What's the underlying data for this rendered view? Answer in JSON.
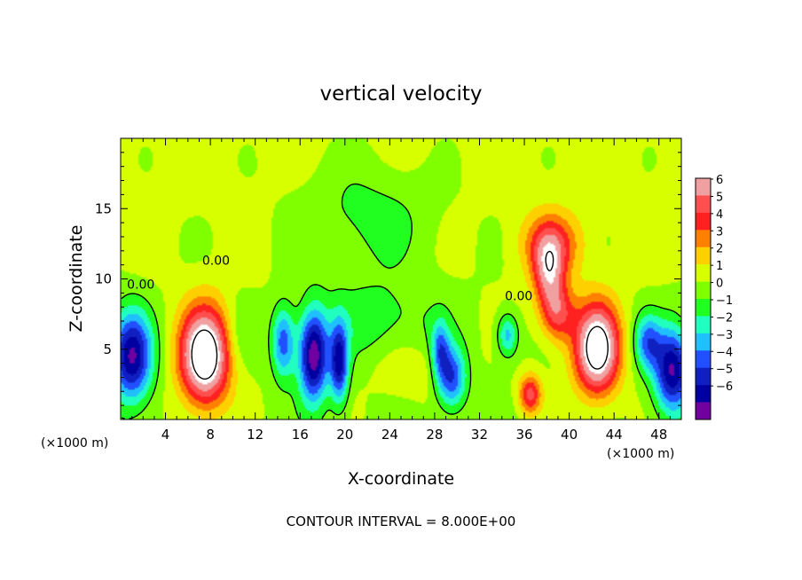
{
  "chart_data": {
    "type": "heatmap",
    "title": "vertical velocity",
    "xlabel": "X-coordinate",
    "ylabel": "Z-coordinate",
    "x_unit_left": "(×1000 m)",
    "x_unit_right": "(×1000 m)",
    "xlim": [
      0,
      50
    ],
    "ylim": [
      0,
      20
    ],
    "xticks": [
      4,
      8,
      12,
      16,
      20,
      24,
      28,
      32,
      36,
      40,
      44,
      48
    ],
    "yticks": [
      5,
      10,
      15
    ],
    "colorbar": {
      "levels": [
        6,
        5,
        4,
        3,
        2,
        1,
        0,
        -1,
        -2,
        -3,
        -4,
        -5,
        -6
      ],
      "tick_labels": [
        "6",
        "5",
        "4",
        "3",
        "2",
        "1",
        "0",
        "−1",
        "−2",
        "−3",
        "−4",
        "−5",
        "−6"
      ],
      "colors": [
        "#f0a0a0",
        "#ff5050",
        "#ff2020",
        "#ff8000",
        "#ffd000",
        "#d8ff00",
        "#80ff00",
        "#20ff20",
        "#20ffc0",
        "#20c0ff",
        "#2050ff",
        "#1020c0",
        "#0000a0",
        "#7000a0"
      ]
    },
    "contour_labels": [
      {
        "text": "0.00",
        "x": 8.5,
        "z": 11.0
      },
      {
        "text": "0.00",
        "x": 1.8,
        "z": 9.3
      },
      {
        "text": "0.00",
        "x": 35.5,
        "z": 8.5
      }
    ],
    "footnote": "CONTOUR INTERVAL = 8.000E+00",
    "updrafts": [
      {
        "x": 7.5,
        "z": 4.5,
        "sx": 2.2,
        "sz": 3.4,
        "amp": 9
      },
      {
        "x": 42.5,
        "z": 5.0,
        "sx": 2.0,
        "sz": 3.2,
        "amp": 8.5
      },
      {
        "x": 38.2,
        "z": 10.5,
        "sx": 1.4,
        "sz": 2.6,
        "amp": 5
      },
      {
        "x": 39.0,
        "z": 7.5,
        "sx": 1.5,
        "sz": 2.0,
        "amp": 4
      },
      {
        "x": 36.5,
        "z": 1.8,
        "sx": 1.0,
        "sz": 1.4,
        "amp": 4.5
      },
      {
        "x": 38.5,
        "z": 12.5,
        "sx": 2.8,
        "sz": 2.2,
        "amp": 3
      },
      {
        "x": 25.5,
        "z": 3.5,
        "sx": 3.0,
        "sz": 2.0,
        "amp": 1.2
      }
    ],
    "downdrafts": [
      {
        "x": 1.0,
        "z": 4.5,
        "sx": 1.8,
        "sz": 3.2,
        "amp": 7
      },
      {
        "x": 49.2,
        "z": 3.5,
        "sx": 1.6,
        "sz": 3.0,
        "amp": 7
      },
      {
        "x": 17.2,
        "z": 4.5,
        "sx": 1.3,
        "sz": 3.2,
        "amp": 7.5
      },
      {
        "x": 19.5,
        "z": 4.0,
        "sx": 0.8,
        "sz": 2.8,
        "amp": 6
      },
      {
        "x": 14.5,
        "z": 5.5,
        "sx": 1.0,
        "sz": 2.5,
        "amp": 4.5
      },
      {
        "x": 29.5,
        "z": 3.0,
        "sx": 1.3,
        "sz": 2.2,
        "amp": 5
      },
      {
        "x": 28.5,
        "z": 5.0,
        "sx": 0.8,
        "sz": 2.0,
        "amp": 3.5
      },
      {
        "x": 34.5,
        "z": 6.0,
        "sx": 0.9,
        "sz": 1.5,
        "amp": 3.5
      },
      {
        "x": 47.0,
        "z": 5.5,
        "sx": 1.2,
        "sz": 2.0,
        "amp": 4
      },
      {
        "x": 23.0,
        "z": 7.0,
        "sx": 6.0,
        "sz": 3.0,
        "amp": 1.5
      },
      {
        "x": 22.0,
        "z": 14.5,
        "sx": 6.0,
        "sz": 4.0,
        "amp": 1.6
      },
      {
        "x": 10.5,
        "z": 6.0,
        "sx": 1.2,
        "sz": 2.5,
        "amp": 1.0
      }
    ],
    "background": {
      "low": 0.8,
      "high": 1.4
    }
  }
}
